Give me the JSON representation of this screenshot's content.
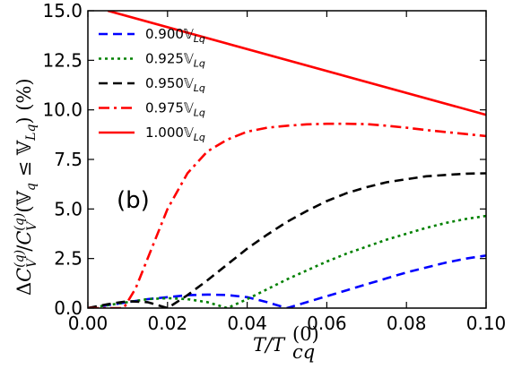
{
  "chart_data": {
    "type": "line",
    "xlabel": "T/T_cq^(0)",
    "ylabel": "ΔC_V^(q)/C_V^(q)(𝕍_q ≤ 𝕍_Lq) (%)",
    "xlim": [
      0.0,
      0.1
    ],
    "ylim": [
      0.0,
      15.0
    ],
    "xticks": [
      "0.00",
      "0.02",
      "0.04",
      "0.06",
      "0.08",
      "0.10"
    ],
    "yticks": [
      "0.0",
      "2.5",
      "5.0",
      "7.5",
      "10.0",
      "12.5",
      "15.0"
    ],
    "annotation": "(b)",
    "legend_position": "upper-left",
    "series": [
      {
        "name": "0.900𝕍_Lq",
        "color": "#0000ff",
        "dash": "dashed",
        "x": [
          0.0,
          0.005,
          0.01,
          0.015,
          0.02,
          0.025,
          0.03,
          0.035,
          0.04,
          0.045,
          0.05,
          0.055,
          0.06,
          0.065,
          0.07,
          0.075,
          0.08,
          0.085,
          0.09,
          0.095,
          0.1
        ],
        "y": [
          0.0,
          0.15,
          0.3,
          0.45,
          0.55,
          0.65,
          0.68,
          0.66,
          0.55,
          0.3,
          0.0,
          0.3,
          0.6,
          0.9,
          1.2,
          1.5,
          1.8,
          2.05,
          2.3,
          2.5,
          2.65
        ]
      },
      {
        "name": "0.925𝕍_Lq",
        "color": "#008000",
        "dash": "dotted",
        "x": [
          0.0,
          0.005,
          0.01,
          0.015,
          0.02,
          0.025,
          0.03,
          0.035,
          0.04,
          0.045,
          0.05,
          0.055,
          0.06,
          0.065,
          0.07,
          0.075,
          0.08,
          0.085,
          0.09,
          0.095,
          0.1
        ],
        "y": [
          0.0,
          0.15,
          0.3,
          0.45,
          0.5,
          0.45,
          0.3,
          0.0,
          0.45,
          0.95,
          1.45,
          1.9,
          2.35,
          2.75,
          3.1,
          3.45,
          3.75,
          4.05,
          4.3,
          4.5,
          4.65
        ]
      },
      {
        "name": "0.950𝕍_Lq",
        "color": "#000000",
        "dash": "dashed",
        "x": [
          0.0,
          0.005,
          0.01,
          0.015,
          0.02,
          0.025,
          0.03,
          0.035,
          0.04,
          0.045,
          0.05,
          0.055,
          0.06,
          0.065,
          0.07,
          0.075,
          0.08,
          0.085,
          0.09,
          0.095,
          0.1
        ],
        "y": [
          0.0,
          0.2,
          0.35,
          0.3,
          0.0,
          0.65,
          1.4,
          2.2,
          3.0,
          3.7,
          4.35,
          4.9,
          5.4,
          5.8,
          6.1,
          6.35,
          6.5,
          6.65,
          6.72,
          6.78,
          6.8
        ]
      },
      {
        "name": "0.975𝕍_Lq",
        "color": "#ff0000",
        "dash": "dashdot",
        "x": [
          0.0,
          0.005,
          0.009,
          0.012,
          0.015,
          0.018,
          0.02,
          0.025,
          0.03,
          0.035,
          0.04,
          0.045,
          0.05,
          0.055,
          0.06,
          0.065,
          0.07,
          0.075,
          0.08,
          0.085,
          0.09,
          0.095,
          0.1
        ],
        "y": [
          0.0,
          0.0,
          0.0,
          1.0,
          2.5,
          4.0,
          5.0,
          6.8,
          7.9,
          8.5,
          8.9,
          9.1,
          9.2,
          9.27,
          9.3,
          9.3,
          9.28,
          9.2,
          9.1,
          8.98,
          8.88,
          8.78,
          8.68
        ]
      },
      {
        "name": "1.000𝕍_Lq",
        "color": "#ff0000",
        "dash": "solid",
        "x": [
          0.005,
          0.1
        ],
        "y": [
          15.0,
          9.75
        ]
      }
    ]
  }
}
